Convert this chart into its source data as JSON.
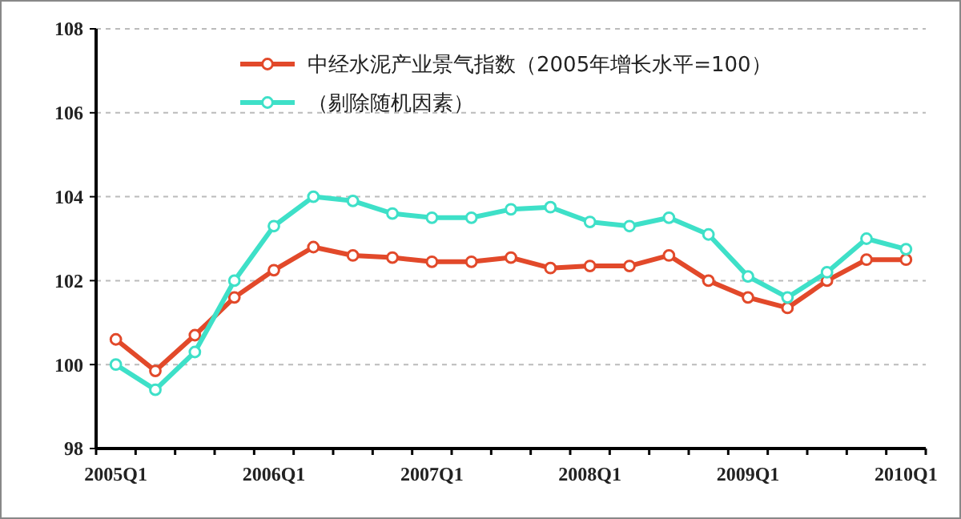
{
  "chart_data": {
    "type": "line",
    "categories": [
      "2005Q1",
      null,
      null,
      null,
      "2006Q1",
      null,
      null,
      null,
      "2007Q1",
      null,
      null,
      null,
      "2008Q1",
      null,
      null,
      null,
      "2009Q1",
      null,
      null,
      null,
      "2010Q1"
    ],
    "series": [
      {
        "name": "中经水泥产业景气指数（2005年增长水平=100）",
        "color": "#e2492a",
        "values": [
          100.6,
          99.85,
          100.7,
          101.6,
          102.25,
          102.8,
          102.6,
          102.55,
          102.45,
          102.45,
          102.55,
          102.3,
          102.35,
          102.35,
          102.6,
          102.0,
          101.6,
          101.35,
          102.0,
          102.5,
          102.5
        ]
      },
      {
        "name": "（剔除随机因素）",
        "color": "#3ee0c8",
        "values": [
          100.0,
          99.4,
          100.3,
          102.0,
          103.3,
          104.0,
          103.9,
          103.6,
          103.5,
          103.5,
          103.7,
          103.75,
          103.4,
          103.3,
          103.5,
          103.1,
          102.1,
          101.6,
          102.2,
          103.0,
          102.75
        ]
      }
    ],
    "ylim": [
      98,
      108
    ],
    "yticks": [
      98,
      100,
      102,
      104,
      106,
      108
    ],
    "grid": "y",
    "legend": "top",
    "marker": "circle",
    "line_style": "solid"
  }
}
